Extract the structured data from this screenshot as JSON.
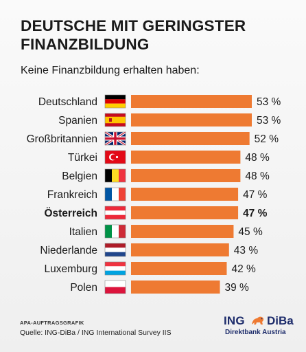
{
  "header": {
    "title": "DEUTSCHE MIT GERINGSTER FINANZBILDUNG",
    "subtitle": "Keine Finanzbildung erhalten haben:"
  },
  "footer": {
    "credit": "APA-AUFTRAGSGRAFIK",
    "source": "Quelle: ING-DiBa / ING International Survey IIS"
  },
  "brand": {
    "name_left": "ING",
    "name_right": "DiBa",
    "tagline": "Direktbank Austria",
    "lion_icon": "lion-icon",
    "color": "#1d2c6b"
  },
  "colors": {
    "bar": "#ee7a32",
    "highlight_country": "Österreich"
  },
  "chart_data": {
    "type": "bar",
    "orientation": "horizontal",
    "categories": [
      "Deutschland",
      "Spanien",
      "Großbritannien",
      "Türkei",
      "Belgien",
      "Frankreich",
      "Österreich",
      "Italien",
      "Niederlande",
      "Luxemburg",
      "Polen"
    ],
    "values": [
      53,
      53,
      52,
      48,
      48,
      47,
      47,
      45,
      43,
      42,
      39
    ],
    "value_labels": [
      "53 %",
      "53 %",
      "52 %",
      "48 %",
      "48 %",
      "47 %",
      "47 %",
      "45 %",
      "43 %",
      "42 %",
      "39 %"
    ],
    "flags": [
      "de",
      "es",
      "gb",
      "tr",
      "be",
      "fr",
      "at",
      "it",
      "nl",
      "lu",
      "pl"
    ],
    "unit": "%",
    "title": "DEUTSCHE MIT GERINGSTER FINANZBILDUNG",
    "subtitle": "Keine Finanzbildung erhalten haben:",
    "xlim": [
      0,
      53
    ],
    "grid": false,
    "legend": "none"
  }
}
